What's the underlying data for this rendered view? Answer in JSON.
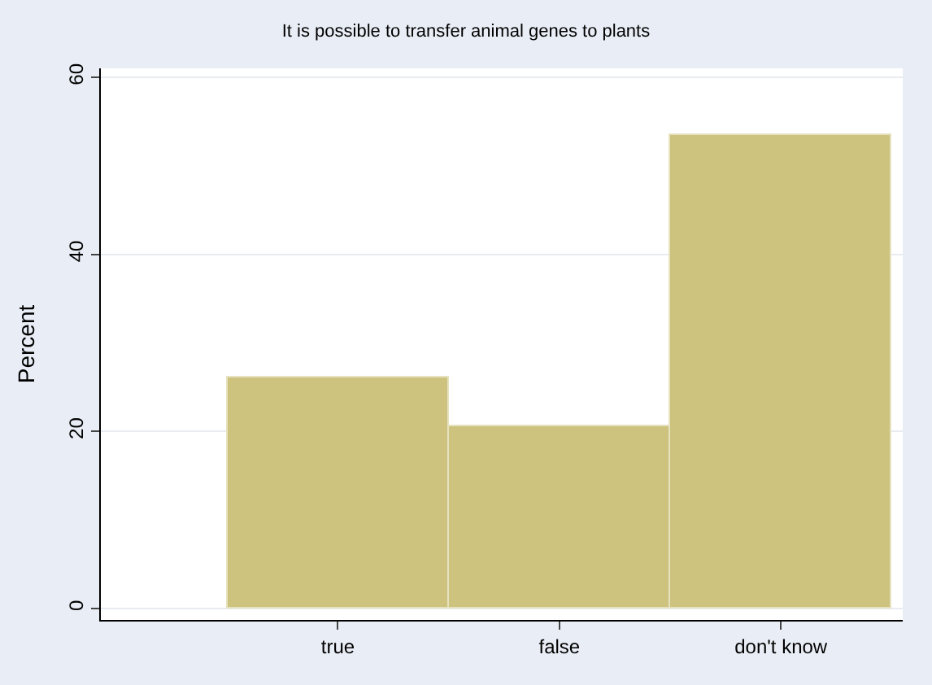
{
  "chart_data": {
    "type": "bar",
    "title": "It is possible to transfer animal genes to plants",
    "ylabel": "Percent",
    "categories": [
      "true",
      "false",
      "don't know"
    ],
    "values": [
      26,
      20.5,
      53.5
    ],
    "color": "#cdc37e",
    "ylim": [
      -1.3,
      61
    ],
    "yticks": [
      0,
      20,
      40,
      60
    ],
    "grid": "y",
    "legend": false
  }
}
